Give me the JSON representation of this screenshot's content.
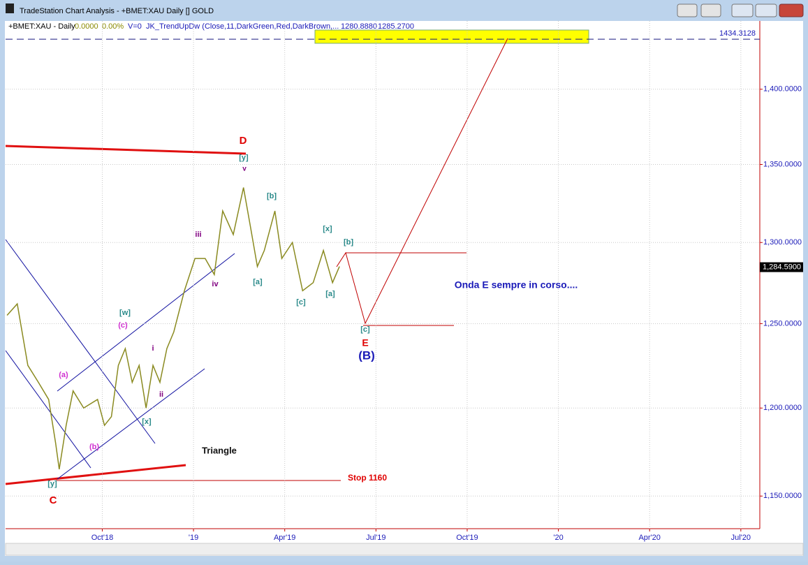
{
  "window": {
    "title": "TradeStation Chart Analysis - +BMET:XAU Daily [] GOLD"
  },
  "header": {
    "symbol": "+BMET:XAU - Daily",
    "change": "0.0000",
    "change_pct": "0.00%",
    "volume": "V=0",
    "indicator": "JK_TrendUpDw (Close,11,DarkGreen,Red,DarkBrown,...",
    "value1": "1280.8880",
    "value2": "1285.2700"
  },
  "chart_data": {
    "type": "line",
    "x": [
      2018.489,
      2018.517,
      2018.546,
      2018.575,
      2018.603,
      2018.622,
      2018.632,
      2018.651,
      2018.67,
      2018.699,
      2018.737,
      2018.756,
      2018.775,
      2018.794,
      2018.813,
      2018.832,
      2018.851,
      2018.87,
      2018.889,
      2018.908,
      2018.927,
      2018.946,
      2018.975,
      2019.004,
      2019.032,
      2019.057,
      2019.08,
      2019.109,
      2019.137,
      2019.156,
      2019.175,
      2019.194,
      2019.223,
      2019.242,
      2019.271,
      2019.299,
      2019.328,
      2019.356,
      2019.381,
      2019.4
    ],
    "series": [
      {
        "name": "+BMET:XAU",
        "color": "#8a8a20",
        "values": [
          1255,
          1262,
          1225,
          1215,
          1205,
          1180,
          1165,
          1190,
          1210,
          1200,
          1205,
          1190,
          1195,
          1225,
          1235,
          1215,
          1225,
          1200,
          1225,
          1215,
          1235,
          1245,
          1270,
          1290,
          1290,
          1280,
          1320,
          1305,
          1335,
          1310,
          1285,
          1295,
          1320,
          1290,
          1300,
          1270,
          1275,
          1295,
          1275,
          1285
        ]
      }
    ],
    "xlim": [
      2018.485,
      2020.552
    ],
    "xticks": [
      {
        "value": 2018.75,
        "label": "Oct'18"
      },
      {
        "value": 2019.0,
        "label": "'19"
      },
      {
        "value": 2019.25,
        "label": "Apr'19"
      },
      {
        "value": 2019.5,
        "label": "Jul'19"
      },
      {
        "value": 2019.75,
        "label": "Oct'19"
      },
      {
        "value": 2020.0,
        "label": "'20"
      },
      {
        "value": 2020.25,
        "label": "Apr'20"
      },
      {
        "value": 2020.5,
        "label": "Jul'20"
      }
    ],
    "ylim": [
      1132,
      1447
    ],
    "log_y": true,
    "grid": true,
    "yticks": [
      {
        "value": 1150,
        "label": "1,150.0000"
      },
      {
        "value": 1200,
        "label": "1,200.0000"
      },
      {
        "value": 1250,
        "label": "1,250.0000"
      },
      {
        "value": 1300,
        "label": "1,300.0000"
      },
      {
        "value": 1350,
        "label": "1,350.0000"
      },
      {
        "value": 1400,
        "label": "1,400.0000"
      }
    ],
    "target": {
      "value": 1434.3128,
      "label": "1434.3128"
    },
    "last": {
      "value": 1284.59,
      "label": "1,284.5900"
    },
    "annotations": [
      {
        "text": "D",
        "color": "#e00000"
      },
      {
        "text": "[y]",
        "color": "#2a8a8a"
      },
      {
        "text": "v",
        "color": "#800080"
      },
      {
        "text": "[b]",
        "color": "#2a8a8a"
      },
      {
        "text": "iii",
        "color": "#800080"
      },
      {
        "text": "iv",
        "color": "#800080"
      },
      {
        "text": "[a]",
        "color": "#2a8a8a"
      },
      {
        "text": "[x]",
        "color": "#2a8a8a"
      },
      {
        "text": "[b]",
        "color": "#2a8a8a"
      },
      {
        "text": "[c]",
        "color": "#2a8a8a"
      },
      {
        "text": "[a]",
        "color": "#2a8a8a"
      },
      {
        "text": "Onda E sempre in corso....",
        "color": "#1a1ab8"
      },
      {
        "text": "[c]",
        "color": "#2a8a8a"
      },
      {
        "text": "E",
        "color": "#e00000"
      },
      {
        "text": "(B)",
        "color": "#1a1ab8"
      },
      {
        "text": "[w]",
        "color": "#2a8a8a"
      },
      {
        "text": "(c)",
        "color": "#d030d0"
      },
      {
        "text": "i",
        "color": "#800080"
      },
      {
        "text": "(a)",
        "color": "#d030d0"
      },
      {
        "text": "ii",
        "color": "#800080"
      },
      {
        "text": "[x]",
        "color": "#2a8a8a"
      },
      {
        "text": "(b)",
        "color": "#d030d0"
      },
      {
        "text": "Triangle",
        "color": "#111111"
      },
      {
        "text": "Stop 1160",
        "color": "#e00000"
      },
      {
        "text": "[y]",
        "color": "#2a8a8a"
      },
      {
        "text": "C",
        "color": "#e00000"
      }
    ]
  }
}
